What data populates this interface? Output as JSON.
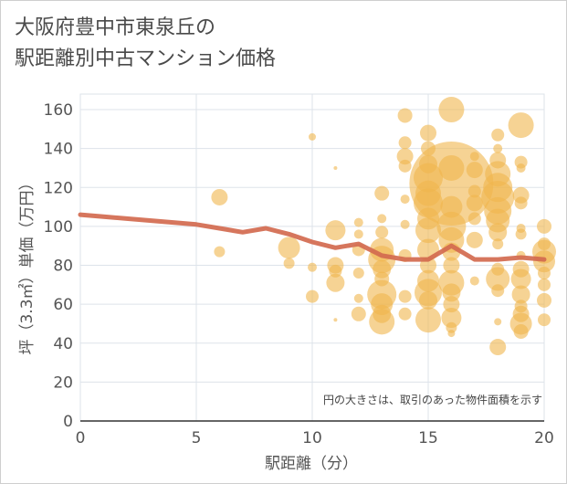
{
  "page": {
    "title_line1": "大阪府豊中市東泉丘の",
    "title_line2": "駅距離別中古マンション価格"
  },
  "chart_data": {
    "type": "scatter",
    "title": "大阪府豊中市東泉丘の駅距離別中古マンション価格",
    "xlabel": "駅距離（分）",
    "ylabel": "坪（3.3㎡）単価（万円）",
    "xlim": [
      0,
      20
    ],
    "ylim": [
      0,
      168
    ],
    "xticks": [
      0,
      5,
      10,
      15,
      20
    ],
    "yticks": [
      0,
      20,
      40,
      60,
      80,
      100,
      120,
      140,
      160
    ],
    "grid": true,
    "note": "円の大きさは、取引のあった物件面積を示す",
    "colors": {
      "bubble": "#f0b54c",
      "line": "#d36a4f",
      "axis_text": "#555555",
      "grid": "#dde3ea"
    },
    "line_series": {
      "x": [
        0,
        1,
        2,
        3,
        4,
        5,
        6,
        7,
        8,
        9,
        10,
        11,
        12,
        13,
        14,
        15,
        16,
        17,
        18,
        19,
        20
      ],
      "y": [
        106,
        105,
        104,
        103,
        102,
        101,
        99,
        97,
        99,
        96,
        92,
        89,
        91,
        85,
        83,
        83,
        90,
        83,
        83,
        84,
        83
      ]
    },
    "bubbles": [
      {
        "x": 6,
        "y": 115,
        "r": 9
      },
      {
        "x": 6,
        "y": 87,
        "r": 6
      },
      {
        "x": 9,
        "y": 89,
        "r": 12
      },
      {
        "x": 9,
        "y": 81,
        "r": 6
      },
      {
        "x": 10,
        "y": 146,
        "r": 4
      },
      {
        "x": 10,
        "y": 79,
        "r": 5
      },
      {
        "x": 10,
        "y": 64,
        "r": 7
      },
      {
        "x": 11,
        "y": 130,
        "r": 2
      },
      {
        "x": 11,
        "y": 98,
        "r": 11
      },
      {
        "x": 11,
        "y": 80,
        "r": 9
      },
      {
        "x": 11,
        "y": 77,
        "r": 7
      },
      {
        "x": 11,
        "y": 71,
        "r": 10
      },
      {
        "x": 11,
        "y": 52,
        "r": 2
      },
      {
        "x": 12,
        "y": 102,
        "r": 5
      },
      {
        "x": 12,
        "y": 96,
        "r": 5
      },
      {
        "x": 12,
        "y": 88,
        "r": 7
      },
      {
        "x": 12,
        "y": 76,
        "r": 6
      },
      {
        "x": 12,
        "y": 63,
        "r": 5
      },
      {
        "x": 12,
        "y": 55,
        "r": 8
      },
      {
        "x": 13,
        "y": 117,
        "r": 8
      },
      {
        "x": 13,
        "y": 104,
        "r": 5
      },
      {
        "x": 13,
        "y": 97,
        "r": 7
      },
      {
        "x": 13,
        "y": 88,
        "r": 13
      },
      {
        "x": 13,
        "y": 83,
        "r": 15
      },
      {
        "x": 13,
        "y": 78,
        "r": 10
      },
      {
        "x": 13,
        "y": 73,
        "r": 8
      },
      {
        "x": 13,
        "y": 65,
        "r": 16
      },
      {
        "x": 13,
        "y": 60,
        "r": 12
      },
      {
        "x": 13,
        "y": 55,
        "r": 10
      },
      {
        "x": 13,
        "y": 51,
        "r": 14
      },
      {
        "x": 14,
        "y": 157,
        "r": 8
      },
      {
        "x": 14,
        "y": 143,
        "r": 7
      },
      {
        "x": 14,
        "y": 136,
        "r": 9
      },
      {
        "x": 14,
        "y": 131,
        "r": 7
      },
      {
        "x": 14,
        "y": 114,
        "r": 5
      },
      {
        "x": 14,
        "y": 101,
        "r": 5
      },
      {
        "x": 14,
        "y": 85,
        "r": 7
      },
      {
        "x": 14,
        "y": 64,
        "r": 7
      },
      {
        "x": 14,
        "y": 55,
        "r": 7
      },
      {
        "x": 15,
        "y": 148,
        "r": 9
      },
      {
        "x": 15,
        "y": 140,
        "r": 8
      },
      {
        "x": 15,
        "y": 132,
        "r": 10
      },
      {
        "x": 15,
        "y": 125,
        "r": 16
      },
      {
        "x": 15,
        "y": 117,
        "r": 14
      },
      {
        "x": 15,
        "y": 112,
        "r": 16
      },
      {
        "x": 15,
        "y": 104,
        "r": 12
      },
      {
        "x": 15,
        "y": 98,
        "r": 14
      },
      {
        "x": 15,
        "y": 88,
        "r": 12
      },
      {
        "x": 15,
        "y": 80,
        "r": 9
      },
      {
        "x": 15,
        "y": 72,
        "r": 12
      },
      {
        "x": 15,
        "y": 66,
        "r": 15
      },
      {
        "x": 15,
        "y": 62,
        "r": 10
      },
      {
        "x": 15,
        "y": 52,
        "r": 14
      },
      {
        "x": 16,
        "y": 160,
        "r": 14
      },
      {
        "x": 16,
        "y": 130,
        "r": 14
      },
      {
        "x": 16,
        "y": 122,
        "r": 46
      },
      {
        "x": 16,
        "y": 110,
        "r": 12
      },
      {
        "x": 16,
        "y": 100,
        "r": 16
      },
      {
        "x": 16,
        "y": 93,
        "r": 14
      },
      {
        "x": 16,
        "y": 87,
        "r": 10
      },
      {
        "x": 16,
        "y": 80,
        "r": 9
      },
      {
        "x": 16,
        "y": 71,
        "r": 14
      },
      {
        "x": 16,
        "y": 66,
        "r": 10
      },
      {
        "x": 16,
        "y": 60,
        "r": 9
      },
      {
        "x": 16,
        "y": 53,
        "r": 11
      },
      {
        "x": 16,
        "y": 48,
        "r": 6
      },
      {
        "x": 16,
        "y": 45,
        "r": 4
      },
      {
        "x": 17,
        "y": 136,
        "r": 5
      },
      {
        "x": 17,
        "y": 129,
        "r": 9
      },
      {
        "x": 17,
        "y": 118,
        "r": 7
      },
      {
        "x": 17,
        "y": 112,
        "r": 9
      },
      {
        "x": 17,
        "y": 104,
        "r": 7
      },
      {
        "x": 17,
        "y": 93,
        "r": 9
      },
      {
        "x": 17,
        "y": 72,
        "r": 5
      },
      {
        "x": 18,
        "y": 147,
        "r": 7
      },
      {
        "x": 18,
        "y": 140,
        "r": 5
      },
      {
        "x": 18,
        "y": 134,
        "r": 9
      },
      {
        "x": 18,
        "y": 127,
        "r": 14
      },
      {
        "x": 18,
        "y": 120,
        "r": 16
      },
      {
        "x": 18,
        "y": 115,
        "r": 18
      },
      {
        "x": 18,
        "y": 108,
        "r": 15
      },
      {
        "x": 18,
        "y": 103,
        "r": 13
      },
      {
        "x": 18,
        "y": 97,
        "r": 10
      },
      {
        "x": 18,
        "y": 91,
        "r": 6
      },
      {
        "x": 18,
        "y": 78,
        "r": 7
      },
      {
        "x": 18,
        "y": 73,
        "r": 13
      },
      {
        "x": 18,
        "y": 67,
        "r": 7
      },
      {
        "x": 18,
        "y": 51,
        "r": 4
      },
      {
        "x": 18,
        "y": 38,
        "r": 9
      },
      {
        "x": 19,
        "y": 152,
        "r": 14
      },
      {
        "x": 19,
        "y": 133,
        "r": 7
      },
      {
        "x": 19,
        "y": 130,
        "r": 5
      },
      {
        "x": 19,
        "y": 116,
        "r": 9
      },
      {
        "x": 19,
        "y": 112,
        "r": 7
      },
      {
        "x": 19,
        "y": 99,
        "r": 5
      },
      {
        "x": 19,
        "y": 96,
        "r": 6
      },
      {
        "x": 19,
        "y": 85,
        "r": 5
      },
      {
        "x": 19,
        "y": 78,
        "r": 9
      },
      {
        "x": 19,
        "y": 73,
        "r": 11
      },
      {
        "x": 19,
        "y": 65,
        "r": 10
      },
      {
        "x": 19,
        "y": 59,
        "r": 7
      },
      {
        "x": 19,
        "y": 55,
        "r": 9
      },
      {
        "x": 19,
        "y": 50,
        "r": 12
      },
      {
        "x": 19,
        "y": 46,
        "r": 8
      },
      {
        "x": 20,
        "y": 100,
        "r": 8
      },
      {
        "x": 20,
        "y": 91,
        "r": 7
      },
      {
        "x": 20,
        "y": 87,
        "r": 13
      },
      {
        "x": 20,
        "y": 82,
        "r": 12
      },
      {
        "x": 20,
        "y": 76,
        "r": 7
      },
      {
        "x": 20,
        "y": 70,
        "r": 7
      },
      {
        "x": 20,
        "y": 62,
        "r": 8
      },
      {
        "x": 20,
        "y": 52,
        "r": 7
      }
    ]
  }
}
